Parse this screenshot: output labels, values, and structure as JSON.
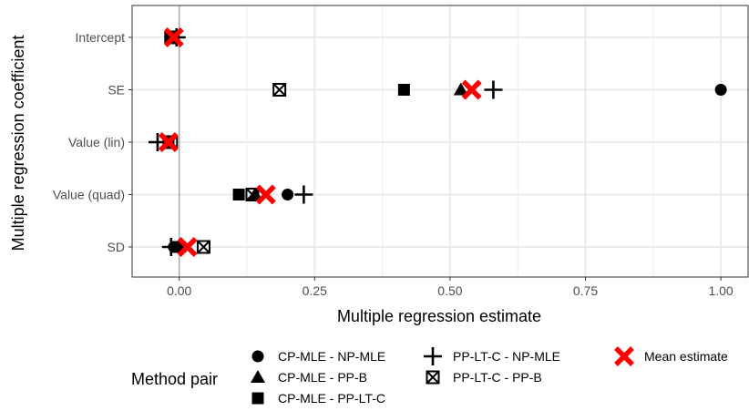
{
  "chart_data": {
    "type": "scatter",
    "orientation": "horizontal",
    "xlabel": "Multiple regression estimate",
    "ylabel": "Multiple regression coefficient",
    "categories": [
      "Intercept",
      "SE",
      "Value (lin)",
      "Value (quad)",
      "SD"
    ],
    "xlim": [
      -0.087,
      1.052
    ],
    "x_ticks": [
      0.0,
      0.25,
      0.5,
      0.75,
      1.0
    ],
    "x_tick_labels": [
      "0.00",
      "0.25",
      "0.50",
      "0.75",
      "1.00"
    ],
    "reference_line_x": 0,
    "grid": true,
    "legend": {
      "title": "Method pair",
      "position": "bottom"
    },
    "series": [
      {
        "name": "CP-MLE - NP-MLE",
        "shape": "circle",
        "values": [
          -0.01,
          1.0,
          -0.02,
          0.2,
          -0.01
        ]
      },
      {
        "name": "CP-MLE - PP-B",
        "shape": "triangle",
        "values": [
          -0.01,
          0.52,
          -0.02,
          0.14,
          0.0
        ]
      },
      {
        "name": "CP-MLE - PP-LT-C",
        "shape": "square",
        "values": [
          -0.015,
          0.415,
          -0.02,
          0.11,
          0.0
        ]
      },
      {
        "name": "PP-LT-C - NP-MLE",
        "shape": "plus",
        "values": [
          -0.005,
          0.58,
          -0.04,
          0.23,
          -0.015
        ]
      },
      {
        "name": "PP-LT-C - PP-B",
        "shape": "boxx",
        "values": [
          -0.015,
          0.185,
          -0.015,
          0.135,
          0.045
        ]
      },
      {
        "name": "Mean estimate",
        "shape": "redx",
        "color": "#ff0000",
        "values": [
          -0.01,
          0.54,
          -0.02,
          0.16,
          0.015
        ]
      }
    ]
  }
}
